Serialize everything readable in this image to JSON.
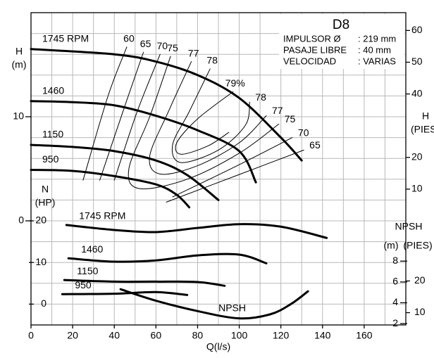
{
  "chart_data": {
    "type": "line",
    "info": {
      "title": "D8",
      "rows": [
        [
          "IMPULSOR Ø",
          ": 219 mm"
        ],
        [
          "PASAJE LIBRE",
          ": 40 mm"
        ],
        [
          "VELOCIDAD",
          ": VARIAS"
        ]
      ]
    },
    "xlabel": "Q(l/s)",
    "xlim": [
      0,
      180
    ],
    "xticks": [
      0,
      20,
      40,
      60,
      80,
      100,
      120,
      140,
      160
    ],
    "xminorticks": [
      10,
      30,
      50,
      70,
      90,
      110,
      130,
      150,
      170,
      180
    ],
    "h_label": [
      "H",
      "(m)"
    ],
    "ylim": [
      -10,
      20
    ],
    "yticks": [
      0,
      10
    ],
    "yminorticks": [
      -10,
      -8,
      -6,
      -4,
      -2,
      2,
      4,
      6,
      8,
      12,
      14,
      16,
      18,
      20
    ],
    "n_label": [
      "N",
      "(HP)"
    ],
    "nlim": [
      -5,
      70
    ],
    "nticks": [
      0,
      10,
      20
    ],
    "hft_label": [
      "H",
      "(PIES"
    ],
    "hft_lim": [
      -32.81,
      65.62
    ],
    "hft_ticks": [
      10,
      20,
      40,
      50,
      60
    ],
    "npsh_label": [
      "NPSH",
      "(m)",
      "(PIES)"
    ],
    "npsh_lim": [
      1.87,
      31.87
    ],
    "npsh_ticks": [
      2,
      4,
      6,
      8
    ],
    "npsh_ft_lim": [
      6.13,
      104.56
    ],
    "npsh_ft_ticks": [
      10,
      20
    ],
    "color": "#000000",
    "series": [
      {
        "name": "1745 RPM",
        "axis": "h",
        "x": [
          0,
          40,
          60,
          80,
          100,
          120,
          130
        ],
        "values": [
          16.5,
          16.0,
          15.3,
          14.0,
          11.8,
          8.0,
          5.8
        ]
      },
      {
        "name": "1460",
        "axis": "h",
        "x": [
          0,
          20,
          40,
          60,
          80,
          100,
          108
        ],
        "values": [
          11.5,
          11.4,
          11.1,
          10.1,
          8.7,
          6.7,
          3.7
        ]
      },
      {
        "name": "1150",
        "axis": "h",
        "x": [
          0,
          20,
          40,
          60,
          75,
          90
        ],
        "values": [
          7.3,
          7.1,
          6.7,
          5.8,
          4.4,
          2.0
        ]
      },
      {
        "name": "950",
        "axis": "h",
        "x": [
          0,
          20,
          40,
          60,
          70,
          76
        ],
        "values": [
          4.9,
          4.8,
          4.3,
          3.5,
          2.5,
          1.3
        ]
      },
      {
        "name": "1745 RPM",
        "axis": "n",
        "x": [
          17,
          40,
          60,
          80,
          100,
          120,
          142
        ],
        "values": [
          19.0,
          17.8,
          17.3,
          18.3,
          19.2,
          18.6,
          15.9
        ]
      },
      {
        "name": "1460",
        "axis": "n",
        "x": [
          18,
          40,
          60,
          80,
          100,
          113
        ],
        "values": [
          11.0,
          10.2,
          10.5,
          11.7,
          11.9,
          9.8
        ]
      },
      {
        "name": "1150",
        "axis": "n",
        "x": [
          16,
          40,
          60,
          80,
          93
        ],
        "values": [
          5.8,
          5.4,
          5.4,
          5.3,
          4.4
        ]
      },
      {
        "name": "950",
        "axis": "n",
        "x": [
          15,
          40,
          60,
          75
        ],
        "values": [
          2.4,
          2.5,
          2.9,
          2.2
        ]
      },
      {
        "name": "NPSH",
        "axis": "npsh",
        "x": [
          43,
          60,
          80,
          100,
          115,
          125,
          133
        ],
        "values": [
          5.3,
          4.2,
          3.2,
          2.5,
          2.9,
          3.9,
          5.1
        ]
      },
      {
        "name": "60",
        "axis": "eff",
        "x": [
          46,
          37,
          25
        ],
        "values": [
          16.7,
          12,
          3.9
        ]
      },
      {
        "name": "65",
        "axis": "eff",
        "x": [
          54,
          45,
          33,
          null,
          65,
          98,
          131
        ],
        "values": [
          16.2,
          11,
          3.9,
          null,
          1.8,
          4.3,
          6.8
        ]
      },
      {
        "name": "70",
        "axis": "eff",
        "x": [
          62,
          51,
          40,
          null,
          68,
          98,
          125.5
        ],
        "values": [
          16,
          10.5,
          3.9,
          null,
          2.3,
          5.2,
          8
        ]
      },
      {
        "name": "75",
        "axis": "eff",
        "x": [
          67,
          57,
          47,
          52,
          75,
          100,
          119
        ],
        "values": [
          15.8,
          10,
          5,
          3.1,
          4,
          6.5,
          9.3
        ]
      },
      {
        "name": "77",
        "axis": "eff",
        "x": [
          77,
          66,
          57,
          62,
          80,
          100,
          113
        ],
        "values": [
          15.3,
          10.5,
          6.2,
          4.5,
          5.3,
          7.5,
          10.1
        ]
      },
      {
        "name": "78",
        "axis": "eff",
        "x": [
          86,
          76,
          68,
          72,
          90,
          103,
          105
        ],
        "values": [
          14.6,
          10.5,
          7.3,
          5.6,
          6.8,
          9.2,
          11.4
        ]
      },
      {
        "name": "79%",
        "axis": "eff",
        "x": [
          97,
          80,
          70,
          72,
          85,
          95
        ],
        "values": [
          12.4,
          9.8,
          7.5,
          6.4,
          7.2,
          8.5
        ]
      }
    ]
  }
}
